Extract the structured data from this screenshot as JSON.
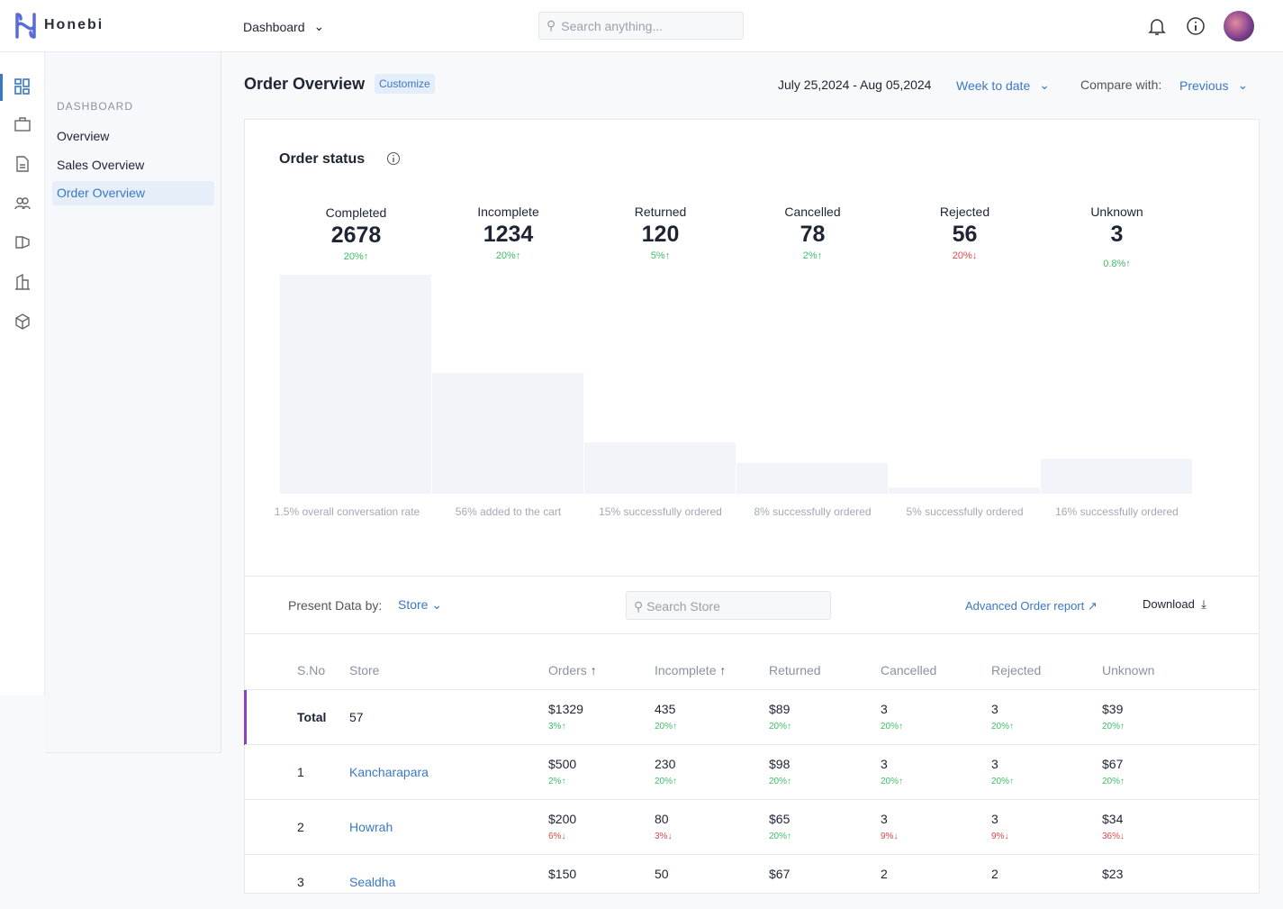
{
  "app": {
    "name": "Honebi",
    "nav_menu": "Dashboard",
    "search_placeholder": "Search anything..."
  },
  "sidebar": {
    "section": "DASHBOARD",
    "items": [
      {
        "label": "Overview"
      },
      {
        "label": "Sales Overview"
      },
      {
        "label": "Order Overview",
        "active": true
      }
    ]
  },
  "rail_icons": [
    "dashboard-grid-icon",
    "briefcase-icon",
    "document-icon",
    "users-icon",
    "megaphone-icon",
    "building-icon",
    "box-icon"
  ],
  "header": {
    "title": "Order Overview",
    "customize": "Customize",
    "date_range": "July 25,2024 - Aug 05,2024",
    "period": "Week to date",
    "compare_label": "Compare with:",
    "compare_value": "Previous"
  },
  "order_status": {
    "title": "Order status",
    "items": [
      {
        "label": "Completed",
        "value": "2678",
        "change": "20%",
        "dir": "up",
        "note": "1.5% overall conversation rate",
        "bar_level": 1.0
      },
      {
        "label": "Incomplete",
        "value": "1234",
        "change": "20%",
        "dir": "up",
        "note": "56% added to the cart",
        "bar_level": 0.55
      },
      {
        "label": "Returned",
        "value": "120",
        "change": "5%",
        "dir": "up",
        "note": "15% successfully ordered",
        "bar_level": 0.235
      },
      {
        "label": "Cancelled",
        "value": "78",
        "change": "2%",
        "dir": "up",
        "note": "8% successfully ordered",
        "bar_level": 0.14
      },
      {
        "label": "Rejected",
        "value": "56",
        "change": "20%",
        "dir": "down",
        "note": "5% successfully ordered",
        "bar_level": 0.03
      },
      {
        "label": "Unknown",
        "value": "3",
        "change": "0.8%",
        "dir": "up",
        "note": "16% successfully ordered",
        "bar_level": 0.16
      }
    ]
  },
  "filter": {
    "present_label": "Present Data by:",
    "present_value": "Store",
    "search_placeholder": "Search Store",
    "advanced": "Advanced Order report",
    "download": "Download"
  },
  "table": {
    "headers": [
      "S.No",
      "Store",
      "Orders",
      "Incomplete",
      "Returned",
      "Cancelled",
      "Rejected",
      "Unknown"
    ],
    "rows": [
      {
        "sno": "Total",
        "store": "57",
        "cells": [
          [
            "$1329",
            "3%",
            "up"
          ],
          [
            "435",
            "20%",
            "up"
          ],
          [
            "$89",
            "20%",
            "up"
          ],
          [
            "3",
            "20%",
            "up"
          ],
          [
            "3",
            "20%",
            "up"
          ],
          [
            "$39",
            "20%",
            "up"
          ]
        ]
      },
      {
        "sno": "1",
        "store": "Kancharapara",
        "cells": [
          [
            "$500",
            "2%",
            "up"
          ],
          [
            "230",
            "20%",
            "up"
          ],
          [
            "$98",
            "20%",
            "up"
          ],
          [
            "3",
            "20%",
            "up"
          ],
          [
            "3",
            "20%",
            "up"
          ],
          [
            "$67",
            "20%",
            "up"
          ]
        ]
      },
      {
        "sno": "2",
        "store": "Howrah",
        "cells": [
          [
            "$200",
            "6%",
            "down"
          ],
          [
            "80",
            "3%",
            "down"
          ],
          [
            "$65",
            "20%",
            "up"
          ],
          [
            "3",
            "9%",
            "down"
          ],
          [
            "3",
            "9%",
            "down"
          ],
          [
            "$34",
            "36%",
            "down"
          ]
        ]
      },
      {
        "sno": "3",
        "store": "Sealdha",
        "cells": [
          [
            "$150",
            "",
            ""
          ],
          [
            "50",
            "",
            ""
          ],
          [
            "$67",
            "",
            ""
          ],
          [
            "2",
            "",
            ""
          ],
          [
            "2",
            "",
            ""
          ],
          [
            "$23",
            "",
            ""
          ]
        ]
      }
    ]
  },
  "colors": {
    "accent": "#3a78c6",
    "up": "#3ebd66",
    "down": "#e0474c",
    "total_marker": "#8e3fc0"
  }
}
